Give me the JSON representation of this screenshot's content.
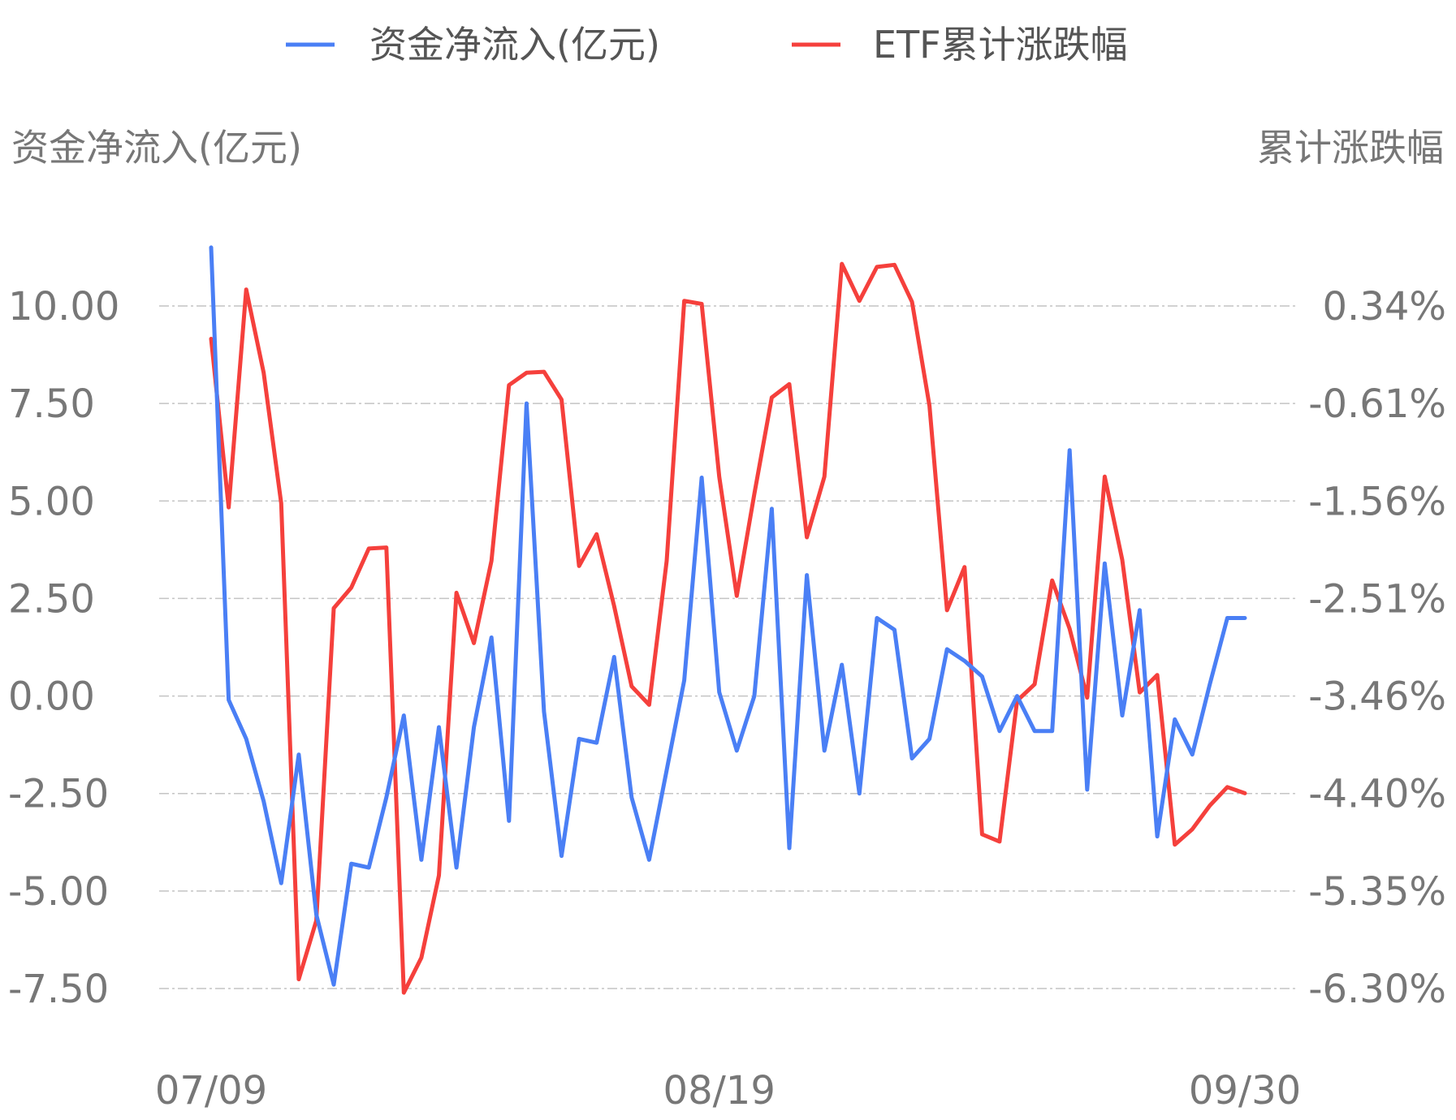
{
  "chart_data": {
    "type": "line",
    "legend_position": "top-center",
    "grid": "horizontal dashed",
    "y_left_label": "资金净流入(亿元)",
    "y_right_label": "累计涨跌幅",
    "y_left_ticks": [
      "10.00",
      "7.50",
      "5.00",
      "2.50",
      "0.00",
      "-2.50",
      "-5.00",
      "-7.50"
    ],
    "y_right_ticks": [
      "0.34%",
      "-0.61%",
      "-1.56%",
      "-2.51%",
      "-3.46%",
      "-4.40%",
      "-5.35%",
      "-6.30%"
    ],
    "y_left_range": [
      -7.5,
      10.0
    ],
    "y_right_range": [
      -6.3,
      0.34
    ],
    "x_tick_labels": [
      "07/09",
      "08/19",
      "09/30"
    ],
    "x_tick_indices": [
      0,
      29,
      59
    ],
    "n_points": 60,
    "series": [
      {
        "name": "资金净流入(亿元)",
        "axis": "left",
        "color": "#4a7ff5",
        "values": [
          11.5,
          -0.1,
          -1.1,
          -2.7,
          -4.8,
          -1.5,
          -5.6,
          -7.4,
          -4.3,
          -4.4,
          -2.6,
          -0.5,
          -4.2,
          -0.8,
          -4.4,
          -0.8,
          1.5,
          -3.2,
          7.5,
          -0.4,
          -4.1,
          -1.1,
          -1.2,
          1.0,
          -2.6,
          -4.2,
          -1.9,
          0.4,
          5.6,
          0.1,
          -1.4,
          0.0,
          4.8,
          -3.9,
          3.1,
          -1.4,
          0.8,
          -2.5,
          2.0,
          1.7,
          -1.6,
          -1.1,
          1.2,
          0.9,
          0.5,
          -0.9,
          0.0,
          -0.9,
          -0.9,
          6.3,
          -2.4,
          3.4,
          -0.5,
          2.2,
          -3.6,
          -0.6,
          -1.5,
          0.3,
          2.0,
          2.0
        ]
      },
      {
        "name": "ETF累计涨跌幅",
        "axis": "right",
        "color": "#f5403c",
        "values": [
          0.02,
          -1.62,
          0.5,
          -0.31,
          -1.58,
          -6.21,
          -5.64,
          -2.6,
          -2.4,
          -2.02,
          -2.01,
          -6.34,
          -6.0,
          -5.2,
          -2.45,
          -2.94,
          -2.14,
          -0.43,
          -0.31,
          -0.3,
          -0.57,
          -2.19,
          -1.88,
          -2.58,
          -3.36,
          -3.54,
          -2.14,
          0.39,
          0.36,
          -1.32,
          -2.48,
          -1.49,
          -0.55,
          -0.42,
          -1.91,
          -1.32,
          0.75,
          0.39,
          0.72,
          0.74,
          0.38,
          -0.63,
          -2.62,
          -2.2,
          -4.8,
          -4.87,
          -3.5,
          -3.34,
          -2.33,
          -2.8,
          -3.47,
          -1.32,
          -2.13,
          -3.42,
          -3.25,
          -4.9,
          -4.75,
          -4.52,
          -4.34,
          -4.4
        ]
      }
    ]
  }
}
